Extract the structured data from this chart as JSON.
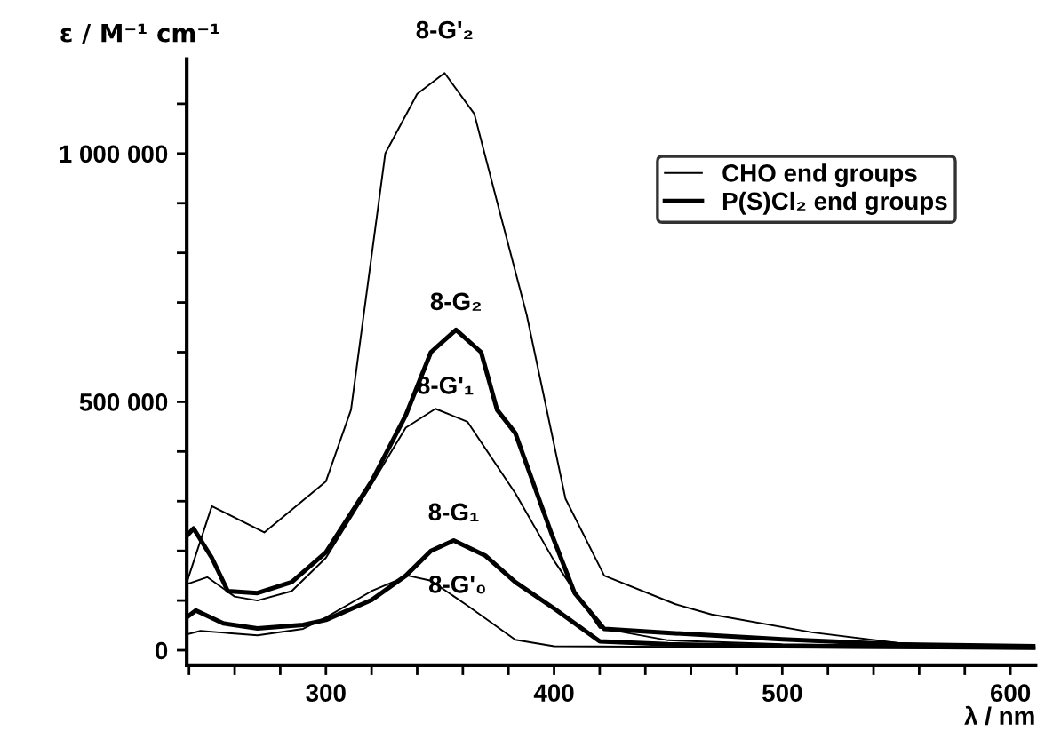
{
  "chart_data": {
    "type": "line",
    "xlabel": "λ / nm",
    "ylabel": "ε / M⁻¹ cm⁻¹",
    "annotations": [
      {
        "text": "8-G'₂",
        "x": 352,
        "y": 1162000
      },
      {
        "text": "8-G₂",
        "x": 357,
        "y": 645000
      },
      {
        "text": "8-G'₁",
        "x": 348,
        "y": 486000
      },
      {
        "text": "8-G₁",
        "x": 356,
        "y": 221000
      },
      {
        "text": "8-G'₀",
        "x": 336,
        "y": 150000
      }
    ],
    "legend": "top right",
    "grid": false,
    "marker": "none",
    "line_style": "solid",
    "xlim": [
      239,
      611
    ],
    "ylim": [
      -30000,
      1190000
    ],
    "xticks": [
      {
        "value": 240,
        "label": null
      },
      {
        "value": 260,
        "label": null
      },
      {
        "value": 280,
        "label": null
      },
      300,
      {
        "value": 320,
        "label": null
      },
      {
        "value": 340,
        "label": null
      },
      {
        "value": 360,
        "label": null
      },
      {
        "value": 380,
        "label": null
      },
      400,
      {
        "value": 420,
        "label": null
      },
      {
        "value": 440,
        "label": null
      },
      {
        "value": 460,
        "label": null
      },
      {
        "value": 480,
        "label": null
      },
      500,
      {
        "value": 520,
        "label": null
      },
      {
        "value": 540,
        "label": null
      },
      {
        "value": 560,
        "label": null
      },
      {
        "value": 580,
        "label": null
      },
      600
    ],
    "yticks": [
      {
        "value": 0,
        "label": "0"
      },
      {
        "value": 100000,
        "label": null
      },
      {
        "value": 200000,
        "label": null
      },
      {
        "value": 300000,
        "label": null
      },
      {
        "value": 400000,
        "label": null
      },
      {
        "value": 500000,
        "label": "500 000"
      },
      {
        "value": 600000,
        "label": null
      },
      {
        "value": 700000,
        "label": null
      },
      {
        "value": 800000,
        "label": null
      },
      {
        "value": 900000,
        "label": null
      },
      {
        "value": 1000000,
        "label": "1 000 000"
      },
      {
        "value": 1100000,
        "label": null
      }
    ],
    "series": [
      {
        "name": "CHO end groups",
        "color": "#000000",
        "x": [
          239,
          250,
          273,
          300,
          311,
          326,
          340,
          352,
          365,
          375,
          388,
          405,
          422,
          453,
          469,
          513,
          552,
          600,
          611,
          null,
          239,
          248,
          260,
          270,
          285,
          300,
          320,
          335,
          348,
          362,
          383,
          400,
          420,
          450,
          500,
          611,
          null,
          239,
          245,
          270,
          290,
          300,
          320,
          336,
          346,
          362,
          383,
          400,
          611
        ],
        "values": [
          136000,
          290000,
          237000,
          340000,
          484000,
          1000000,
          1120000,
          1162000,
          1080000,
          903000,
          675000,
          305000,
          150000,
          93000,
          72000,
          36000,
          14000,
          5000,
          5000,
          null,
          133000,
          147000,
          108000,
          100000,
          119000,
          186000,
          334000,
          448000,
          486000,
          460000,
          316000,
          180000,
          45000,
          20000,
          12000,
          6000,
          null,
          32000,
          39000,
          30000,
          43000,
          66000,
          119000,
          150000,
          140000,
          90000,
          21000,
          8000,
          3000
        ]
      },
      {
        "name": "P(S)Cl₂ end groups",
        "color": "#000000",
        "x": [
          239,
          242,
          250,
          257,
          270,
          285,
          300,
          320,
          335,
          346,
          357,
          368,
          375,
          383,
          399,
          409,
          422,
          450,
          500,
          550,
          611,
          null,
          239,
          243,
          255,
          270,
          290,
          300,
          320,
          335,
          346,
          356,
          370,
          383,
          400,
          420,
          450,
          500,
          611
        ],
        "values": [
          230000,
          245000,
          186000,
          119000,
          115000,
          137000,
          197000,
          340000,
          473000,
          600000,
          645000,
          600000,
          484000,
          437000,
          233000,
          115000,
          43000,
          35000,
          22000,
          12000,
          8000,
          null,
          66000,
          80000,
          54000,
          44000,
          51000,
          61000,
          101000,
          150000,
          200000,
          221000,
          190000,
          137000,
          84000,
          18000,
          12000,
          8000,
          5000
        ]
      }
    ]
  }
}
